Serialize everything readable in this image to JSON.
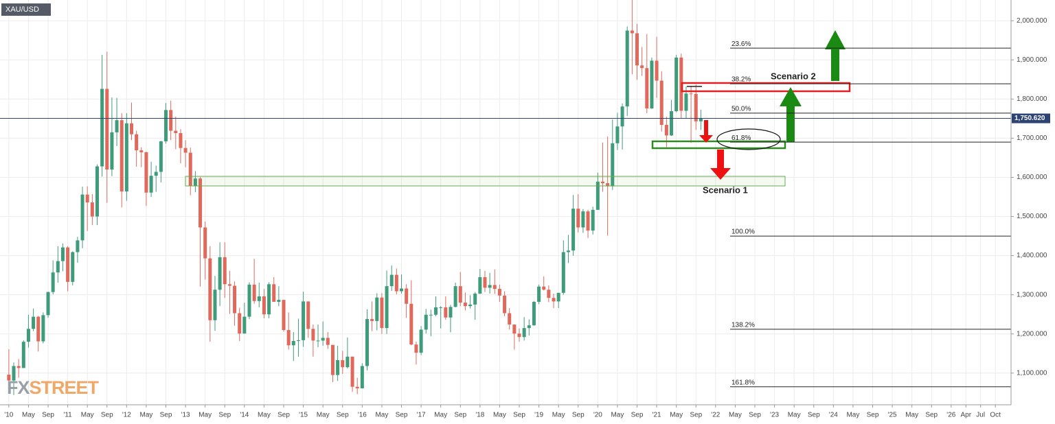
{
  "chart_data": {
    "type": "candlestick",
    "symbol": "XAU/USD",
    "watermark": {
      "left": "FX",
      "right": "STREET"
    },
    "up_color": "#3e9c7a",
    "down_color": "#e0695c",
    "grid": true,
    "xlim": [
      -1.8,
      204.2
    ],
    "ylim": [
      1019,
      2053
    ],
    "xticks": [
      {
        "value": 0,
        "label": "'10"
      },
      {
        "value": 4,
        "label": "May"
      },
      {
        "value": 8,
        "label": "Sep"
      },
      {
        "value": 12,
        "label": "'11"
      },
      {
        "value": 16,
        "label": "May"
      },
      {
        "value": 20,
        "label": "Sep"
      },
      {
        "value": 24,
        "label": "'12"
      },
      {
        "value": 28,
        "label": "May"
      },
      {
        "value": 32,
        "label": "Sep"
      },
      {
        "value": 36,
        "label": "'13"
      },
      {
        "value": 40,
        "label": "May"
      },
      {
        "value": 44,
        "label": "Sep"
      },
      {
        "value": 48,
        "label": "'14"
      },
      {
        "value": 52,
        "label": "May"
      },
      {
        "value": 56,
        "label": "Sep"
      },
      {
        "value": 60,
        "label": "'15"
      },
      {
        "value": 64,
        "label": "May"
      },
      {
        "value": 68,
        "label": "Sep"
      },
      {
        "value": 72,
        "label": "'16"
      },
      {
        "value": 76,
        "label": "May"
      },
      {
        "value": 80,
        "label": "Sep"
      },
      {
        "value": 84,
        "label": "'17"
      },
      {
        "value": 88,
        "label": "May"
      },
      {
        "value": 92,
        "label": "Sep"
      },
      {
        "value": 96,
        "label": "'18"
      },
      {
        "value": 100,
        "label": "May"
      },
      {
        "value": 104,
        "label": "Sep"
      },
      {
        "value": 108,
        "label": "'19"
      },
      {
        "value": 112,
        "label": "May"
      },
      {
        "value": 116,
        "label": "Sep"
      },
      {
        "value": 120,
        "label": "'20"
      },
      {
        "value": 124,
        "label": "May"
      },
      {
        "value": 128,
        "label": "Sep"
      },
      {
        "value": 132,
        "label": "'21"
      },
      {
        "value": 136,
        "label": "May"
      },
      {
        "value": 140,
        "label": "Sep"
      },
      {
        "value": 144,
        "label": "'22"
      },
      {
        "value": 148,
        "label": "May"
      },
      {
        "value": 152,
        "label": "Sep"
      },
      {
        "value": 156,
        "label": "'23"
      },
      {
        "value": 160,
        "label": "May"
      },
      {
        "value": 164,
        "label": "Sep"
      },
      {
        "value": 168,
        "label": "'24"
      },
      {
        "value": 172,
        "label": "May"
      },
      {
        "value": 176,
        "label": "Sep"
      },
      {
        "value": 180,
        "label": "'25"
      },
      {
        "value": 184,
        "label": "May"
      },
      {
        "value": 188,
        "label": "Sep"
      },
      {
        "value": 192,
        "label": "'26"
      },
      {
        "value": 195,
        "label": "Apr"
      },
      {
        "value": 198,
        "label": "Jul"
      },
      {
        "value": 201,
        "label": "Oct"
      }
    ],
    "yticks": [
      {
        "value": 2000,
        "label": "2,000.000"
      },
      {
        "value": 1900,
        "label": "1,900.000"
      },
      {
        "value": 1800,
        "label": "1,800.000"
      },
      {
        "value": 1700,
        "label": "1,700.000"
      },
      {
        "value": 1600,
        "label": "1,600.000"
      },
      {
        "value": 1500,
        "label": "1,500.000"
      },
      {
        "value": 1400,
        "label": "1,400.000"
      },
      {
        "value": 1300,
        "label": "1,300.000"
      },
      {
        "value": 1200,
        "label": "1,200.000"
      },
      {
        "value": 1100,
        "label": "1,100.000"
      }
    ],
    "last_price": {
      "value": 1750.62,
      "label": "1,750.620"
    },
    "fib_levels": [
      {
        "value": 1930,
        "label": "23.6%"
      },
      {
        "value": 1839,
        "label": "38.2%"
      },
      {
        "value": 1764,
        "label": "50.0%"
      },
      {
        "value": 1690,
        "label": "61.8%"
      },
      {
        "value": 1450,
        "label": "100.0%"
      },
      {
        "value": 1212,
        "label": "138.2%"
      },
      {
        "value": 1065,
        "label": "161.8%"
      }
    ],
    "annotations": [
      "Scenario 2",
      "Scenario 1"
    ],
    "open": [
      1096,
      1081,
      1118,
      1113,
      1180,
      1213,
      1244,
      1181,
      1248,
      1307,
      1357,
      1386,
      1421,
      1333,
      1409,
      1439,
      1556,
      1536,
      1500,
      1628,
      1826,
      1620,
      1715,
      1746,
      1564,
      1738,
      1710,
      1669,
      1664,
      1561,
      1604,
      1614,
      1692,
      1772,
      1719,
      1713,
      1675,
      1663,
      1578,
      1597,
      1472,
      1393,
      1235,
      1313,
      1396,
      1327,
      1323,
      1253,
      1201,
      1244,
      1326,
      1284,
      1296,
      1250,
      1327,
      1282,
      1287,
      1210,
      1171,
      1182,
      1184,
      1283,
      1213,
      1183,
      1183,
      1190,
      1172,
      1095,
      1133,
      1115,
      1142,
      1065,
      1061,
      1118,
      1238,
      1233,
      1293,
      1215,
      1322,
      1351,
      1309,
      1316,
      1277,
      1173,
      1152,
      1211,
      1249,
      1249,
      1268,
      1268,
      1242,
      1269,
      1322,
      1280,
      1271,
      1275,
      1303,
      1345,
      1318,
      1325,
      1315,
      1298,
      1253,
      1224,
      1201,
      1192,
      1215,
      1222,
      1282,
      1321,
      1313,
      1292,
      1283,
      1305,
      1409,
      1413,
      1520,
      1472,
      1513,
      1464,
      1517,
      1589,
      1585,
      1577,
      1687,
      1730,
      1781,
      1975,
      1968,
      1886,
      1879,
      1776,
      1898,
      1847,
      1734,
      1707,
      1769,
      1906,
      1770,
      1814,
      1813,
      1743
    ],
    "high": [
      1161,
      1127,
      1136,
      1184,
      1249,
      1265,
      1246,
      1255,
      1308,
      1388,
      1424,
      1431,
      1424,
      1411,
      1448,
      1576,
      1577,
      1557,
      1633,
      1913,
      1921,
      1804,
      1803,
      1764,
      1764,
      1791,
      1719,
      1677,
      1666,
      1640,
      1630,
      1693,
      1790,
      1796,
      1755,
      1723,
      1695,
      1676,
      1616,
      1601,
      1487,
      1424,
      1348,
      1434,
      1434,
      1361,
      1334,
      1267,
      1280,
      1332,
      1392,
      1331,
      1315,
      1332,
      1345,
      1322,
      1287,
      1255,
      1205,
      1239,
      1308,
      1283,
      1224,
      1224,
      1232,
      1205,
      1172,
      1170,
      1157,
      1191,
      1142,
      1088,
      1125,
      1263,
      1283,
      1304,
      1304,
      1362,
      1375,
      1367,
      1352,
      1327,
      1337,
      1180,
      1220,
      1264,
      1262,
      1296,
      1271,
      1296,
      1274,
      1331,
      1358,
      1306,
      1299,
      1307,
      1366,
      1361,
      1356,
      1365,
      1326,
      1309,
      1266,
      1224,
      1214,
      1243,
      1237,
      1284,
      1326,
      1347,
      1324,
      1303,
      1305,
      1439,
      1453,
      1555,
      1557,
      1519,
      1517,
      1525,
      1612,
      1689,
      1704,
      1748,
      1765,
      1789,
      1985,
      2075,
      1992,
      1933,
      1966,
      1906,
      1959,
      1871,
      1755,
      1798,
      1913,
      1916,
      1832,
      1834,
      1837,
      1773
    ],
    "low": [
      1075,
      1044,
      1088,
      1113,
      1165,
      1207,
      1155,
      1176,
      1241,
      1301,
      1331,
      1360,
      1309,
      1324,
      1382,
      1419,
      1463,
      1478,
      1478,
      1602,
      1535,
      1603,
      1680,
      1523,
      1540,
      1695,
      1627,
      1626,
      1527,
      1550,
      1563,
      1587,
      1686,
      1695,
      1672,
      1636,
      1626,
      1554,
      1562,
      1321,
      1339,
      1180,
      1208,
      1271,
      1292,
      1251,
      1221,
      1182,
      1201,
      1238,
      1277,
      1268,
      1240,
      1240,
      1282,
      1271,
      1206,
      1160,
      1131,
      1142,
      1167,
      1190,
      1142,
      1166,
      1170,
      1162,
      1077,
      1080,
      1098,
      1112,
      1052,
      1046,
      1061,
      1107,
      1207,
      1209,
      1200,
      1200,
      1310,
      1301,
      1303,
      1241,
      1171,
      1122,
      1146,
      1201,
      1194,
      1245,
      1214,
      1236,
      1204,
      1268,
      1271,
      1260,
      1265,
      1236,
      1302,
      1307,
      1303,
      1302,
      1282,
      1245,
      1211,
      1160,
      1180,
      1183,
      1196,
      1221,
      1276,
      1311,
      1281,
      1266,
      1266,
      1300,
      1381,
      1400,
      1459,
      1458,
      1445,
      1454,
      1517,
      1563,
      1451,
      1568,
      1670,
      1671,
      1757,
      1863,
      1849,
      1859,
      1764,
      1775,
      1803,
      1717,
      1677,
      1706,
      1766,
      1750,
      1751,
      1688,
      1721,
      1721
    ],
    "close": [
      1081,
      1118,
      1113,
      1180,
      1213,
      1244,
      1181,
      1248,
      1307,
      1357,
      1386,
      1421,
      1333,
      1409,
      1439,
      1556,
      1536,
      1500,
      1628,
      1826,
      1620,
      1715,
      1746,
      1564,
      1738,
      1710,
      1669,
      1664,
      1561,
      1604,
      1614,
      1692,
      1772,
      1719,
      1713,
      1675,
      1663,
      1578,
      1597,
      1472,
      1393,
      1235,
      1313,
      1396,
      1327,
      1323,
      1253,
      1201,
      1244,
      1326,
      1284,
      1296,
      1250,
      1327,
      1282,
      1287,
      1210,
      1171,
      1182,
      1184,
      1283,
      1213,
      1183,
      1183,
      1190,
      1172,
      1095,
      1133,
      1115,
      1142,
      1065,
      1061,
      1118,
      1238,
      1233,
      1293,
      1215,
      1322,
      1351,
      1309,
      1316,
      1277,
      1173,
      1152,
      1211,
      1249,
      1249,
      1268,
      1268,
      1242,
      1269,
      1322,
      1280,
      1271,
      1275,
      1303,
      1345,
      1318,
      1325,
      1315,
      1298,
      1253,
      1224,
      1201,
      1192,
      1215,
      1222,
      1282,
      1321,
      1313,
      1292,
      1283,
      1305,
      1409,
      1413,
      1520,
      1472,
      1513,
      1464,
      1517,
      1589,
      1585,
      1577,
      1687,
      1730,
      1781,
      1975,
      1968,
      1886,
      1879,
      1776,
      1898,
      1847,
      1734,
      1707,
      1769,
      1906,
      1770,
      1814,
      1813,
      1743,
      1750.62
    ]
  }
}
